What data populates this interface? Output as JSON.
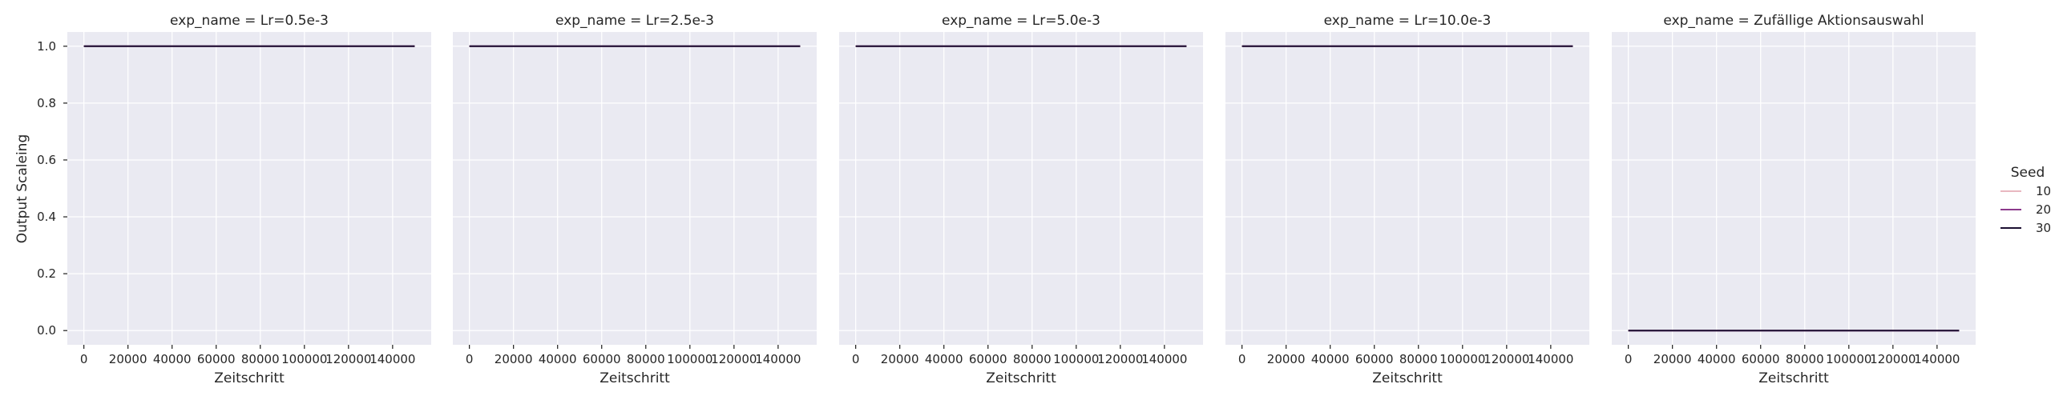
{
  "chart_data": {
    "type": "line",
    "facet_label": "exp_name",
    "xlabel": "Zeitschritt",
    "ylabel": "Output Scaleing",
    "xlim": [
      -7500,
      157500
    ],
    "ylim": [
      -0.05,
      1.05
    ],
    "xticks": [
      0,
      20000,
      40000,
      60000,
      80000,
      100000,
      120000,
      140000
    ],
    "yticks": [
      0.0,
      0.2,
      0.4,
      0.6,
      0.8,
      1.0
    ],
    "grid": true,
    "legend": {
      "title": "Seed",
      "placement": "right",
      "entries": [
        {
          "label": "10",
          "color": "#e8b7c0"
        },
        {
          "label": "20",
          "color": "#8c3a8c"
        },
        {
          "label": "30",
          "color": "#1b0f30"
        }
      ]
    },
    "panels": [
      {
        "title": "exp_name = Lr=0.5e-3",
        "series": [
          {
            "name": "10",
            "x": [
              0,
              150000
            ],
            "y": [
              1.0,
              1.0
            ]
          },
          {
            "name": "20",
            "x": [
              0,
              150000
            ],
            "y": [
              1.0,
              1.0
            ]
          },
          {
            "name": "30",
            "x": [
              0,
              150000
            ],
            "y": [
              1.0,
              1.0
            ]
          }
        ]
      },
      {
        "title": "exp_name = Lr=2.5e-3",
        "series": [
          {
            "name": "10",
            "x": [
              0,
              150000
            ],
            "y": [
              1.0,
              1.0
            ]
          },
          {
            "name": "20",
            "x": [
              0,
              150000
            ],
            "y": [
              1.0,
              1.0
            ]
          },
          {
            "name": "30",
            "x": [
              0,
              150000
            ],
            "y": [
              1.0,
              1.0
            ]
          }
        ]
      },
      {
        "title": "exp_name = Lr=5.0e-3",
        "series": [
          {
            "name": "10",
            "x": [
              0,
              150000
            ],
            "y": [
              1.0,
              1.0
            ]
          },
          {
            "name": "20",
            "x": [
              0,
              150000
            ],
            "y": [
              1.0,
              1.0
            ]
          },
          {
            "name": "30",
            "x": [
              0,
              150000
            ],
            "y": [
              1.0,
              1.0
            ]
          }
        ]
      },
      {
        "title": "exp_name = Lr=10.0e-3",
        "series": [
          {
            "name": "10",
            "x": [
              0,
              150000
            ],
            "y": [
              1.0,
              1.0
            ]
          },
          {
            "name": "20",
            "x": [
              0,
              150000
            ],
            "y": [
              1.0,
              1.0
            ]
          },
          {
            "name": "30",
            "x": [
              0,
              150000
            ],
            "y": [
              1.0,
              1.0
            ]
          }
        ]
      },
      {
        "title": "exp_name = Zufällige Aktionsauswahl",
        "series": [
          {
            "name": "10",
            "x": [
              0,
              150000
            ],
            "y": [
              0.0,
              0.0
            ]
          },
          {
            "name": "20",
            "x": [
              0,
              150000
            ],
            "y": [
              0.0,
              0.0
            ]
          },
          {
            "name": "30",
            "x": [
              0,
              150000
            ],
            "y": [
              0.0,
              0.0
            ]
          }
        ]
      }
    ]
  }
}
